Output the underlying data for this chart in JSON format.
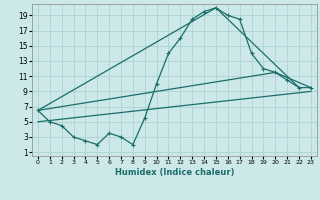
{
  "xlabel": "Humidex (Indice chaleur)",
  "bg_color": "#cce8e8",
  "grid_color": "#aacece",
  "line_color": "#1a6e6a",
  "xlim": [
    -0.5,
    23.5
  ],
  "ylim": [
    0.5,
    20.5
  ],
  "xticks": [
    0,
    1,
    2,
    3,
    4,
    5,
    6,
    7,
    8,
    9,
    10,
    11,
    12,
    13,
    14,
    15,
    16,
    17,
    18,
    19,
    20,
    21,
    22,
    23
  ],
  "yticks": [
    1,
    3,
    5,
    7,
    9,
    11,
    13,
    15,
    17,
    19
  ],
  "line1_x": [
    0,
    1,
    2,
    3,
    4,
    5,
    6,
    7,
    8,
    9,
    10,
    11,
    12,
    13,
    14,
    15,
    16,
    17,
    18,
    19,
    20,
    21,
    22,
    23
  ],
  "line1_y": [
    6.5,
    5.0,
    4.5,
    3.0,
    2.5,
    2.0,
    3.5,
    3.0,
    2.0,
    5.5,
    10.0,
    14.0,
    16.0,
    18.5,
    19.5,
    20.0,
    19.0,
    18.5,
    14.0,
    12.0,
    11.5,
    10.5,
    9.5,
    9.5
  ],
  "line2_x": [
    0,
    15,
    22
  ],
  "line2_y": [
    6.5,
    20.0,
    9.5
  ],
  "line3_x": [
    0,
    20,
    23
  ],
  "line3_y": [
    6.5,
    11.5,
    9.5
  ],
  "line4_x": [
    0,
    23
  ],
  "line4_y": [
    5.0,
    9.0
  ]
}
